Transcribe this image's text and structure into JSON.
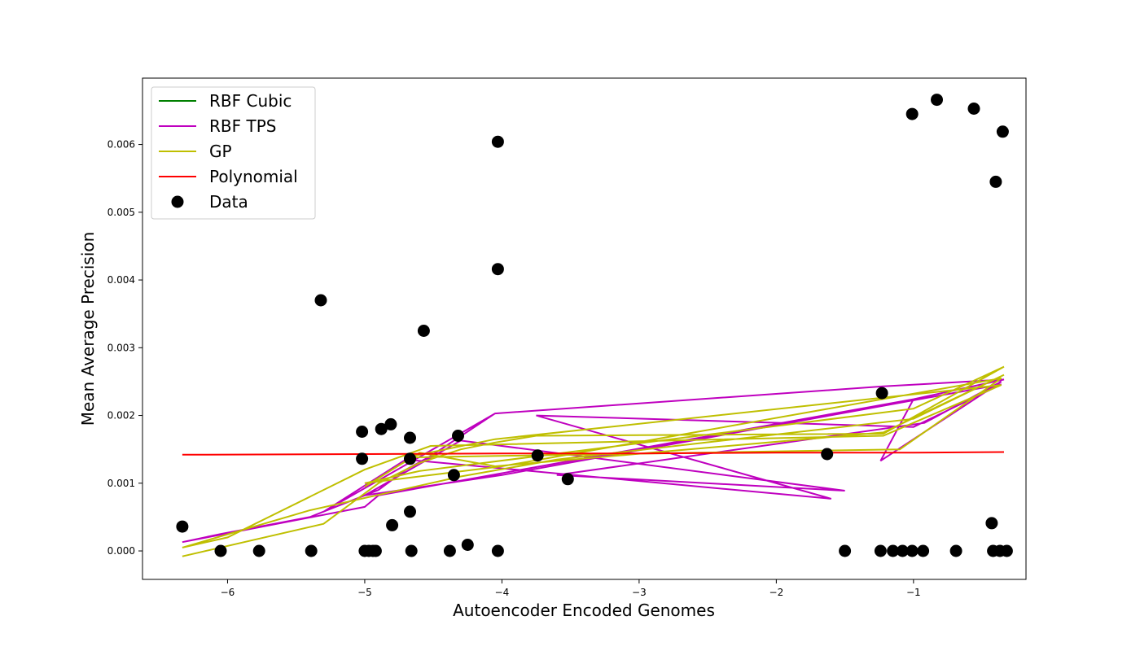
{
  "chart_data": {
    "type": "scatter",
    "title": "",
    "xlabel": "Autoencoder Encoded Genomes",
    "ylabel": "Mean Average Precision",
    "xlim": [
      -6.62,
      -0.18
    ],
    "ylim": [
      -0.00042,
      0.00698
    ],
    "x_ticks": [
      -6,
      -5,
      -4,
      -3,
      -2,
      -1
    ],
    "x_tick_labels": [
      "−6",
      "−5",
      "−4",
      "−3",
      "−2",
      "−1"
    ],
    "y_ticks": [
      0.0,
      0.001,
      0.002,
      0.003,
      0.004,
      0.005,
      0.006
    ],
    "y_tick_labels": [
      "0.000",
      "0.001",
      "0.002",
      "0.003",
      "0.004",
      "0.005",
      "0.006"
    ],
    "grid": false,
    "legend_position": "top-left",
    "legend": [
      {
        "label": "RBF Cubic",
        "color": "#008000",
        "kind": "line"
      },
      {
        "label": "RBF TPS",
        "color": "#bf00bf",
        "kind": "line"
      },
      {
        "label": "GP",
        "color": "#bfbf00",
        "kind": "line"
      },
      {
        "label": "Polynomial",
        "color": "#ff0000",
        "kind": "line"
      },
      {
        "label": "Data",
        "color": "#000000",
        "kind": "marker"
      }
    ],
    "series": [
      {
        "name": "RBF TPS",
        "color": "#bf00bf",
        "kind": "line",
        "x": [
          -6.33,
          -6.05,
          -5.4,
          -4.9,
          -4.7,
          -4.52,
          -4.05,
          -1.22,
          -0.34,
          -1.0,
          -1.24,
          -0.36,
          -0.92,
          -3.6,
          -1.5,
          -4.3,
          -5.0,
          -4.0,
          -0.36,
          -1.0,
          -3.75,
          -1.6,
          -4.7,
          -5.3,
          -4.52,
          -4.05,
          -1.22,
          -0.34,
          -1.0,
          -4.9,
          -5.0,
          -6.33
        ],
        "y": [
          0.00013,
          0.00025,
          0.0005,
          0.0009,
          0.0012,
          0.0014,
          0.00203,
          0.00243,
          0.00253,
          0.00224,
          0.00133,
          0.0025,
          0.00189,
          0.00112,
          0.00089,
          0.00163,
          0.00082,
          0.00112,
          0.00246,
          0.00183,
          0.002,
          0.00077,
          0.00135,
          0.00058,
          0.00148,
          0.00203,
          0.00243,
          0.00253,
          0.00224,
          0.00082,
          0.00065,
          0.00013
        ]
      },
      {
        "name": "GP",
        "color": "#bfbf00",
        "kind": "line",
        "x": [
          -6.33,
          -5.3,
          -4.9,
          -4.6,
          -4.3,
          -4.05,
          -3.75,
          -1.22,
          -0.34,
          -1.0,
          -4.6,
          -5.0,
          -4.0,
          -0.36,
          -1.1,
          -4.7,
          -4.05,
          -0.36,
          -1.22,
          -4.52,
          -5.0,
          -6.0,
          -6.33,
          -5.4,
          -4.3,
          -3.6,
          -1.0,
          -0.34,
          -1.22,
          -4.05,
          -4.6,
          -5.0
        ],
        "y": [
          -8e-05,
          0.0004,
          0.001,
          0.0013,
          0.0015,
          0.0016,
          0.0017,
          0.00173,
          0.00272,
          0.0021,
          0.00118,
          0.001,
          0.00125,
          0.00255,
          0.0015,
          0.00138,
          0.00165,
          0.00245,
          0.0017,
          0.00155,
          0.0012,
          0.0002,
          5e-05,
          0.0006,
          0.0011,
          0.00135,
          0.00195,
          0.0026,
          0.00175,
          0.00125,
          0.00145,
          0.00095
        ]
      },
      {
        "name": "Polynomial",
        "color": "#ff0000",
        "kind": "line",
        "x": [
          -6.33,
          -5.0,
          -4.0,
          -3.0,
          -2.0,
          -1.0,
          -0.34
        ],
        "y": [
          0.00142,
          0.00143,
          0.00144,
          0.00144,
          0.00145,
          0.00145,
          0.00146
        ]
      },
      {
        "name": "Data",
        "color": "#000000",
        "kind": "marker",
        "x": [
          -6.33,
          -6.05,
          -5.77,
          -5.39,
          -5.32,
          -5.02,
          -5.02,
          -5.0,
          -4.97,
          -4.94,
          -4.92,
          -4.88,
          -4.81,
          -4.8,
          -4.67,
          -4.67,
          -4.67,
          -4.66,
          -4.57,
          -4.38,
          -4.35,
          -4.32,
          -4.25,
          -4.03,
          -4.03,
          -4.03,
          -3.74,
          -3.52,
          -1.63,
          -1.5,
          -1.24,
          -1.23,
          -1.15,
          -1.08,
          -1.01,
          -1.01,
          -0.93,
          -0.83,
          -0.69,
          -0.56,
          -0.43,
          -0.42,
          -0.4,
          -0.37,
          -0.35,
          -0.32
        ],
        "y": [
          0.00036,
          0.0,
          0.0,
          0.0,
          0.0037,
          0.00176,
          0.00136,
          0.0,
          0.0,
          0.0,
          0.0,
          0.0018,
          0.00187,
          0.00038,
          0.00167,
          0.00136,
          0.00058,
          0.0,
          0.00325,
          0.0,
          0.00112,
          0.0017,
          9e-05,
          0.00604,
          0.00416,
          0.0,
          0.00141,
          0.00106,
          0.00143,
          0.0,
          0.0,
          0.00233,
          0.0,
          0.0,
          0.0,
          0.00645,
          0.0,
          0.00666,
          0.0,
          0.00653,
          0.00041,
          0.0,
          0.00545,
          0.0,
          0.00619,
          0.0
        ]
      }
    ]
  }
}
